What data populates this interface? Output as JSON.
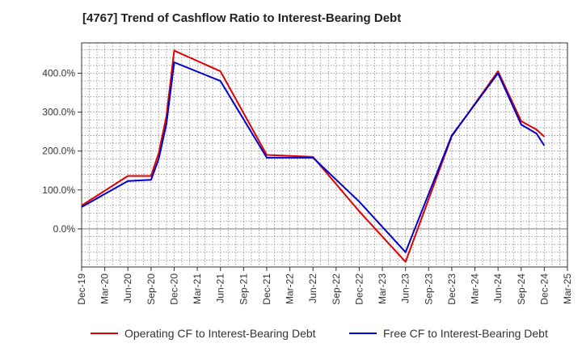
{
  "title": "[4767]  Trend of Cashflow Ratio to Interest-Bearing Debt",
  "chart_data": {
    "type": "line",
    "categories": [
      "Dec-19",
      "Mar-20",
      "Jun-20",
      "Sep-20",
      "Dec-20",
      "Mar-21",
      "Jun-21",
      "Sep-21",
      "Dec-21",
      "Mar-22",
      "Jun-22",
      "Sep-22",
      "Dec-22",
      "Mar-23",
      "Jun-23",
      "Sep-23",
      "Dec-23",
      "Mar-24",
      "Jun-24",
      "Sep-24",
      "Dec-24",
      "Mar-25"
    ],
    "x_tick_labels": [
      "Dec-19",
      "Mar-20",
      "Jun-20",
      "Sep-20",
      "Dec-20",
      "Mar-21",
      "Jun-21",
      "Sep-21",
      "Dec-21",
      "Mar-22",
      "Jun-22",
      "Sep-22",
      "Dec-22",
      "Mar-23",
      "Jun-23",
      "Sep-23",
      "Dec-23",
      "Mar-24",
      "Jun-24",
      "Sep-24",
      "Dec-24",
      "Mar-25"
    ],
    "y_tick_labels": [
      "0.0%",
      "100.0%",
      "200.0%",
      "300.0%",
      "400.0%"
    ],
    "y_ticks": [
      0,
      100,
      200,
      300,
      400
    ],
    "ylim": [
      -98,
      478
    ],
    "grid": true,
    "legend_position": "bottom",
    "series": [
      {
        "name": "Operating CF to Interest-Bearing Debt",
        "color": "#e00000",
        "points": [
          {
            "x": "Dec-19",
            "y": 60
          },
          {
            "x": "Jun-20",
            "y": 136
          },
          {
            "x": "Sep-20",
            "y": 136
          },
          {
            "x": "Oct-20",
            "y": 195
          },
          {
            "x": "Nov-20",
            "y": 290
          },
          {
            "x": "Dec-20",
            "y": 458
          },
          {
            "x": "Jun-21",
            "y": 405
          },
          {
            "x": "Dec-21",
            "y": 190
          },
          {
            "x": "Jun-22",
            "y": 185
          },
          {
            "x": "Dec-22",
            "y": 45
          },
          {
            "x": "Jun-23",
            "y": -85
          },
          {
            "x": "Dec-23",
            "y": 238
          },
          {
            "x": "Jun-24",
            "y": 405
          },
          {
            "x": "Sep-24",
            "y": 277
          },
          {
            "x": "Nov-24",
            "y": 255
          },
          {
            "x": "Dec-24",
            "y": 237
          }
        ]
      },
      {
        "name": "Free CF to Interest-Bearing Debt",
        "color": "#0000cc",
        "points": [
          {
            "x": "Dec-19",
            "y": 56
          },
          {
            "x": "Jun-20",
            "y": 123
          },
          {
            "x": "Sep-20",
            "y": 126
          },
          {
            "x": "Oct-20",
            "y": 180
          },
          {
            "x": "Nov-20",
            "y": 270
          },
          {
            "x": "Dec-20",
            "y": 428
          },
          {
            "x": "Jun-21",
            "y": 380
          },
          {
            "x": "Dec-21",
            "y": 183
          },
          {
            "x": "Jun-22",
            "y": 183
          },
          {
            "x": "Dec-22",
            "y": 70
          },
          {
            "x": "Jun-23",
            "y": -60
          },
          {
            "x": "Dec-23",
            "y": 240
          },
          {
            "x": "Jun-24",
            "y": 400
          },
          {
            "x": "Sep-24",
            "y": 268
          },
          {
            "x": "Nov-24",
            "y": 245
          },
          {
            "x": "Dec-24",
            "y": 214
          }
        ]
      }
    ]
  }
}
